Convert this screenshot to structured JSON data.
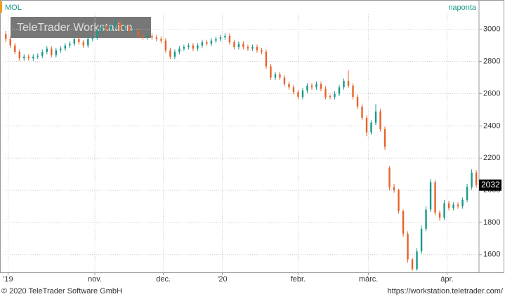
{
  "chart_data": {
    "type": "candlestick",
    "title": "MOL",
    "subtitle": "naponta",
    "watermark": "TeleTrader Workstation",
    "footer_left": "© 2020 TeleTrader Software GmbH",
    "footer_right": "https://workstation.teletrader.com/",
    "up_color": "#17998a",
    "down_color": "#e8622a",
    "grid": true,
    "xlim": [
      -0.5,
      103.6
    ],
    "ylim": [
      1490,
      3095
    ],
    "yticks": [
      1600,
      1800,
      2000,
      2200,
      2400,
      2600,
      2800,
      3000
    ],
    "xticks": [
      {
        "value": 0.5,
        "label": "'19"
      },
      {
        "value": 19.5,
        "label": "nov."
      },
      {
        "value": 34.5,
        "label": "dec."
      },
      {
        "value": 47.4,
        "label": "'20"
      },
      {
        "value": 64,
        "label": "febr."
      },
      {
        "value": 79.4,
        "label": "márc."
      },
      {
        "value": 96.6,
        "label": "ápr."
      }
    ],
    "candles": [
      [
        2970,
        2990,
        2920,
        2940
      ],
      [
        2940,
        2955,
        2885,
        2900
      ],
      [
        2900,
        2915,
        2845,
        2860
      ],
      [
        2860,
        2875,
        2805,
        2820
      ],
      [
        2820,
        2845,
        2805,
        2830
      ],
      [
        2830,
        2845,
        2805,
        2820
      ],
      [
        2820,
        2845,
        2805,
        2830
      ],
      [
        2830,
        2850,
        2815,
        2835
      ],
      [
        2835,
        2875,
        2820,
        2860
      ],
      [
        2860,
        2895,
        2845,
        2880
      ],
      [
        2880,
        2895,
        2825,
        2840
      ],
      [
        2840,
        2885,
        2825,
        2870
      ],
      [
        2870,
        2895,
        2855,
        2880
      ],
      [
        2880,
        2915,
        2865,
        2900
      ],
      [
        2900,
        2925,
        2885,
        2910
      ],
      [
        2910,
        2955,
        2895,
        2940
      ],
      [
        2940,
        2955,
        2905,
        2920
      ],
      [
        2920,
        2935,
        2885,
        2900
      ],
      [
        2900,
        2955,
        2885,
        2940
      ],
      [
        2940,
        2965,
        2925,
        2950
      ],
      [
        2950,
        3005,
        2935,
        2990
      ],
      [
        2990,
        3025,
        2975,
        3010
      ],
      [
        3010,
        3025,
        2985,
        3000
      ],
      [
        3000,
        3035,
        2985,
        3020
      ],
      [
        3020,
        3065,
        3005,
        3040
      ],
      [
        3040,
        3055,
        2985,
        3000
      ],
      [
        3000,
        3025,
        2985,
        3010
      ],
      [
        3010,
        3025,
        2975,
        2990
      ],
      [
        2985,
        3005,
        2975,
        2990
      ],
      [
        2990,
        3005,
        2945,
        2960
      ],
      [
        2960,
        2975,
        2935,
        2950
      ],
      [
        2950,
        2975,
        2935,
        2960
      ],
      [
        2960,
        2975,
        2935,
        2950
      ],
      [
        2950,
        2965,
        2925,
        2940
      ],
      [
        2940,
        2955,
        2915,
        2930
      ],
      [
        2930,
        2945,
        2855,
        2870
      ],
      [
        2870,
        2885,
        2815,
        2830
      ],
      [
        2830,
        2875,
        2815,
        2860
      ],
      [
        2860,
        2895,
        2845,
        2880
      ],
      [
        2880,
        2905,
        2865,
        2890
      ],
      [
        2890,
        2915,
        2875,
        2900
      ],
      [
        2900,
        2915,
        2865,
        2880
      ],
      [
        2880,
        2915,
        2865,
        2900
      ],
      [
        2900,
        2935,
        2885,
        2920
      ],
      [
        2920,
        2935,
        2895,
        2910
      ],
      [
        2910,
        2945,
        2895,
        2930
      ],
      [
        2930,
        2955,
        2915,
        2940
      ],
      [
        2940,
        2965,
        2925,
        2950
      ],
      [
        2950,
        2975,
        2935,
        2960
      ],
      [
        2960,
        2975,
        2905,
        2920
      ],
      [
        2920,
        2935,
        2875,
        2890
      ],
      [
        2890,
        2925,
        2875,
        2910
      ],
      [
        2910,
        2925,
        2875,
        2890
      ],
      [
        2890,
        2905,
        2865,
        2880
      ],
      [
        2880,
        2905,
        2865,
        2890
      ],
      [
        2890,
        2905,
        2855,
        2870
      ],
      [
        2870,
        2885,
        2845,
        2860
      ],
      [
        2860,
        2875,
        2755,
        2770
      ],
      [
        2770,
        2785,
        2685,
        2700
      ],
      [
        2700,
        2735,
        2685,
        2720
      ],
      [
        2720,
        2735,
        2685,
        2700
      ],
      [
        2700,
        2715,
        2645,
        2660
      ],
      [
        2660,
        2675,
        2625,
        2640
      ],
      [
        2640,
        2655,
        2595,
        2610
      ],
      [
        2610,
        2625,
        2565,
        2580
      ],
      [
        2580,
        2635,
        2565,
        2620
      ],
      [
        2620,
        2665,
        2605,
        2650
      ],
      [
        2650,
        2665,
        2625,
        2640
      ],
      [
        2640,
        2675,
        2625,
        2660
      ],
      [
        2660,
        2675,
        2615,
        2630
      ],
      [
        2630,
        2645,
        2565,
        2580
      ],
      [
        2585,
        2595,
        2565,
        2580
      ],
      [
        2580,
        2615,
        2565,
        2600
      ],
      [
        2600,
        2655,
        2585,
        2640
      ],
      [
        2640,
        2695,
        2625,
        2680
      ],
      [
        2680,
        2745,
        2635,
        2650
      ],
      [
        2650,
        2665,
        2565,
        2580
      ],
      [
        2580,
        2595,
        2505,
        2520
      ],
      [
        2520,
        2535,
        2435,
        2450
      ],
      [
        2450,
        2465,
        2335,
        2360
      ],
      [
        2360,
        2435,
        2345,
        2420
      ],
      [
        2420,
        2535,
        2405,
        2490
      ],
      [
        2490,
        2505,
        2365,
        2380
      ],
      [
        2380,
        2395,
        2250,
        2270
      ],
      [
        2140,
        2150,
        2000,
        2020
      ],
      [
        2020,
        2040,
        1985,
        2000
      ],
      [
        2000,
        2010,
        1855,
        1870
      ],
      [
        1870,
        1880,
        1710,
        1730
      ],
      [
        1730,
        1745,
        1550,
        1570
      ],
      [
        1570,
        1580,
        1500,
        1510
      ],
      [
        1510,
        1640,
        1500,
        1620
      ],
      [
        1620,
        1780,
        1605,
        1760
      ],
      [
        1760,
        1900,
        1745,
        1880
      ],
      [
        1880,
        2070,
        1865,
        2050
      ],
      [
        2050,
        2065,
        1845,
        1860
      ],
      [
        1860,
        1875,
        1810,
        1830
      ],
      [
        1830,
        1940,
        1815,
        1920
      ],
      [
        1920,
        1935,
        1875,
        1890
      ],
      [
        1890,
        1925,
        1875,
        1910
      ],
      [
        1910,
        1925,
        1885,
        1900
      ],
      [
        1900,
        1955,
        1885,
        1940
      ],
      [
        1940,
        2040,
        1925,
        2020
      ],
      [
        2020,
        2130,
        2005,
        2110
      ],
      [
        2110,
        2125,
        2015,
        2032
      ]
    ]
  }
}
